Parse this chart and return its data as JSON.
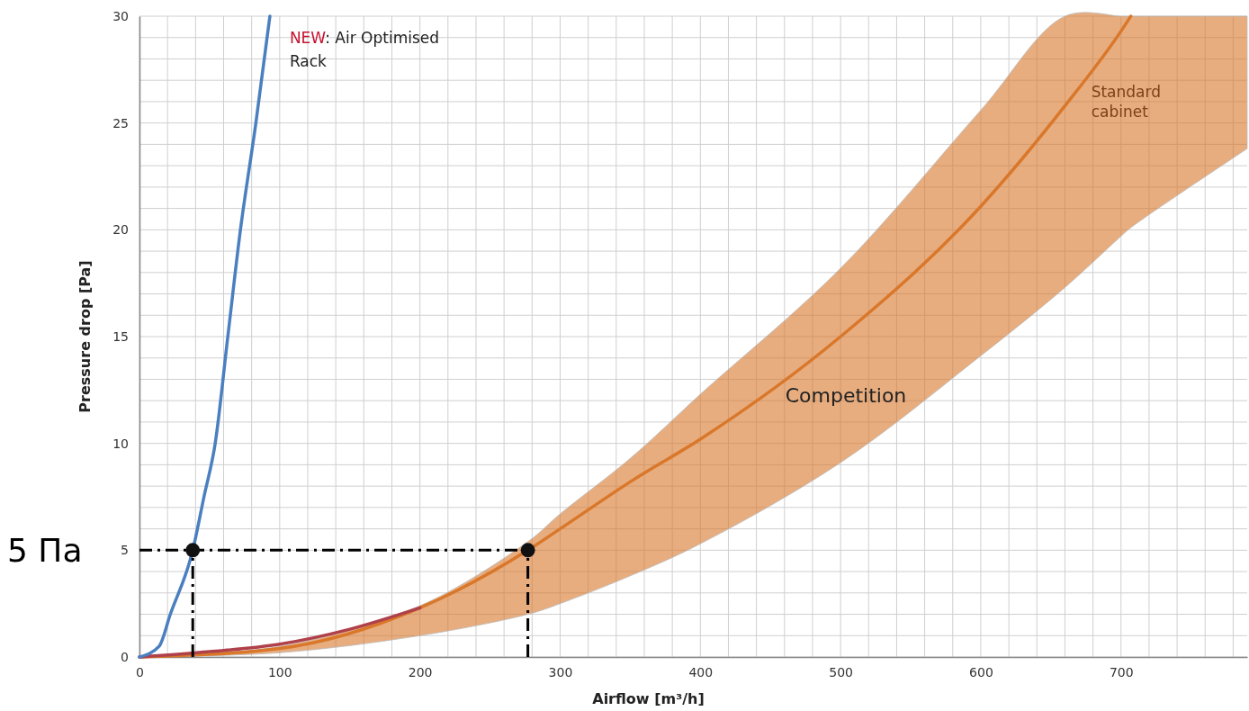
{
  "chart_data": {
    "type": "line",
    "xlabel": "Airflow [m³/h]",
    "ylabel": "Pressure drop [Pa]",
    "xlim": [
      0,
      790
    ],
    "ylim": [
      0,
      30
    ],
    "xticks": [
      0,
      {
        "value": 20,
        "label": null
      },
      {
        "value": 40,
        "label": null
      },
      {
        "value": 60,
        "label": null
      },
      {
        "value": 80,
        "label": null
      },
      100,
      {
        "value": 120,
        "label": null
      },
      {
        "value": 140,
        "label": null
      },
      {
        "value": 160,
        "label": null
      },
      {
        "value": 180,
        "label": null
      },
      200,
      {
        "value": 220,
        "label": null
      },
      {
        "value": 240,
        "label": null
      },
      {
        "value": 260,
        "label": null
      },
      {
        "value": 280,
        "label": null
      },
      300,
      {
        "value": 320,
        "label": null
      },
      {
        "value": 340,
        "label": null
      },
      {
        "value": 360,
        "label": null
      },
      {
        "value": 380,
        "label": null
      },
      400,
      {
        "value": 420,
        "label": null
      },
      {
        "value": 440,
        "label": null
      },
      {
        "value": 460,
        "label": null
      },
      {
        "value": 480,
        "label": null
      },
      500,
      {
        "value": 520,
        "label": null
      },
      {
        "value": 540,
        "label": null
      },
      {
        "value": 560,
        "label": null
      },
      {
        "value": 580,
        "label": null
      },
      600,
      {
        "value": 620,
        "label": null
      },
      {
        "value": 640,
        "label": null
      },
      {
        "value": 660,
        "label": null
      },
      {
        "value": 680,
        "label": null
      },
      700,
      {
        "value": 720,
        "label": null
      },
      {
        "value": 740,
        "label": null
      },
      {
        "value": 760,
        "label": null
      },
      {
        "value": 780,
        "label": null
      }
    ],
    "yticks": [
      0,
      {
        "value": 1,
        "label": null
      },
      {
        "value": 2,
        "label": null
      },
      {
        "value": 3,
        "label": null
      },
      {
        "value": 4,
        "label": null
      },
      5,
      {
        "value": 6,
        "label": null
      },
      {
        "value": 7,
        "label": null
      },
      {
        "value": 8,
        "label": null
      },
      {
        "value": 9,
        "label": null
      },
      10,
      {
        "value": 11,
        "label": null
      },
      {
        "value": 12,
        "label": null
      },
      {
        "value": 13,
        "label": null
      },
      {
        "value": 14,
        "label": null
      },
      15,
      {
        "value": 16,
        "label": null
      },
      {
        "value": 17,
        "label": null
      },
      {
        "value": 18,
        "label": null
      },
      {
        "value": 19,
        "label": null
      },
      20,
      {
        "value": 21,
        "label": null
      },
      {
        "value": 22,
        "label": null
      },
      {
        "value": 23,
        "label": null
      },
      {
        "value": 24,
        "label": null
      },
      25,
      {
        "value": 26,
        "label": null
      },
      {
        "value": 27,
        "label": null
      },
      {
        "value": 28,
        "label": null
      },
      {
        "value": 29,
        "label": null
      },
      30
    ],
    "grid": true,
    "series": [
      {
        "name": "Standard cabinet",
        "color": "#d9772a",
        "x": [
          0,
          100,
          200,
          277,
          300,
          350,
          400,
          500,
          600,
          660,
          700,
          707,
          790
        ],
        "values": [
          0,
          0.4,
          2.3,
          5,
          6.0,
          8.2,
          10.2,
          15,
          21.1,
          25.8,
          29.3,
          30,
          null
        ],
        "lower": [
          0,
          0.2,
          1.0,
          2.0,
          2.5,
          3.8,
          5.3,
          9.1,
          14.1,
          17.3,
          19.7,
          20.1,
          23.8
        ],
        "upper": [
          0,
          0.5,
          2.4,
          5.4,
          6.7,
          9.3,
          12.3,
          18.2,
          25.6,
          30,
          30,
          30,
          30
        ]
      },
      {
        "color": "#b0404a",
        "x": [
          0,
          50,
          100,
          150,
          200
        ],
        "values": [
          0,
          0.25,
          0.6,
          1.3,
          2.3
        ]
      },
      {
        "name": "NEW: Air Optimised Rack",
        "color": "#4a7fc0",
        "x": [
          0,
          14,
          22,
          38,
          46,
          54,
          63,
          72,
          83,
          93
        ],
        "values": [
          0,
          0.5,
          2,
          5,
          7.5,
          10,
          15,
          20,
          25,
          30
        ]
      },
      {
        "type": "scatter",
        "marker": "circle",
        "color": "#111111",
        "x": [
          38,
          277
        ],
        "values": [
          5,
          5
        ]
      }
    ],
    "ref_lines": [
      {
        "axis": "y",
        "value": 5,
        "label": "5 Па",
        "line_style": "dashed",
        "color": "#000000"
      },
      {
        "axis": "x",
        "value": 38,
        "line_style": "dashed",
        "color": "#000000"
      },
      {
        "axis": "x",
        "value": 277,
        "line_style": "dashed",
        "color": "#000000"
      }
    ],
    "annotations": [
      "Competition"
    ]
  }
}
